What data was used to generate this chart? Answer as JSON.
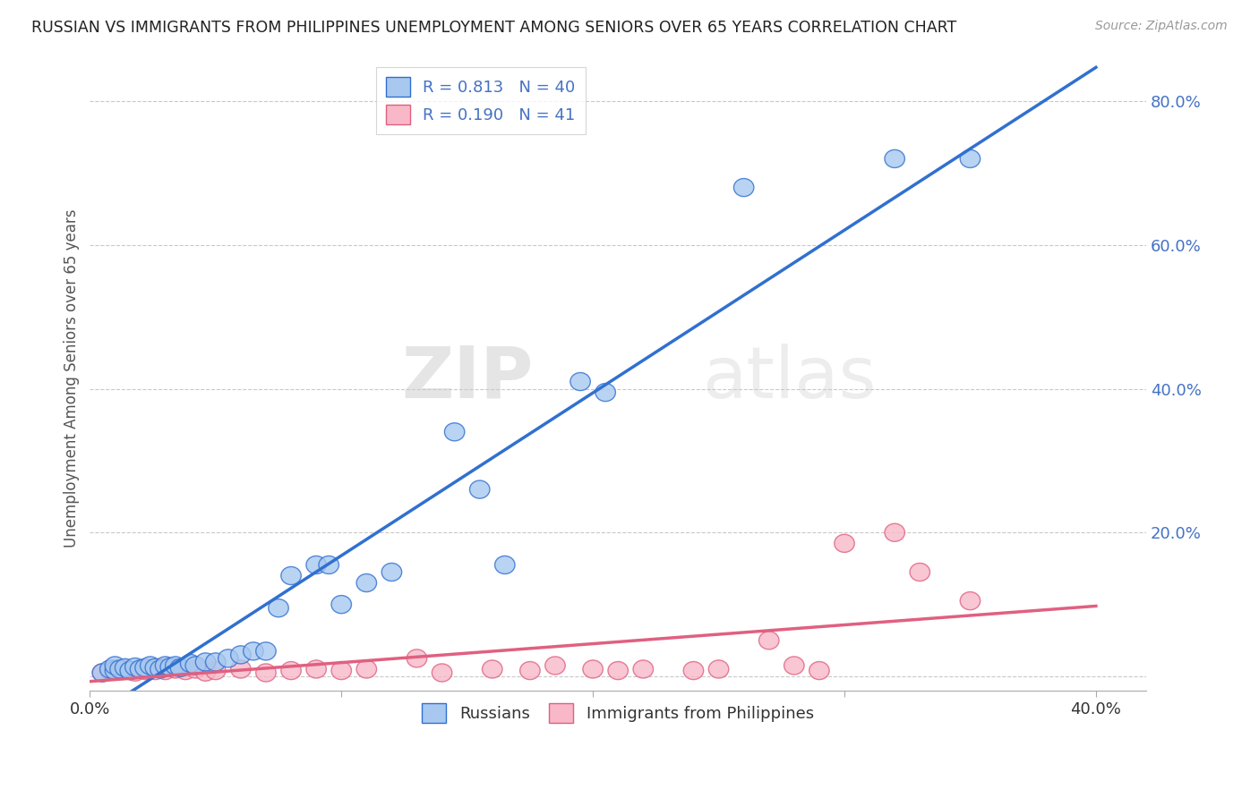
{
  "title": "RUSSIAN VS IMMIGRANTS FROM PHILIPPINES UNEMPLOYMENT AMONG SENIORS OVER 65 YEARS CORRELATION CHART",
  "source": "Source: ZipAtlas.com",
  "ylabel": "Unemployment Among Seniors over 65 years",
  "xlim": [
    0.0,
    0.42
  ],
  "ylim": [
    -0.02,
    0.85
  ],
  "xticks": [
    0.0,
    0.1,
    0.2,
    0.3,
    0.4
  ],
  "xtick_labels": [
    "0.0%",
    "",
    "",
    "",
    "40.0%"
  ],
  "ytick_labels_right": [
    "",
    "20.0%",
    "40.0%",
    "60.0%",
    "80.0%"
  ],
  "yticks_right": [
    0.0,
    0.2,
    0.4,
    0.6,
    0.8
  ],
  "russian_color": "#A8C8F0",
  "philippine_color": "#F8B8C8",
  "russian_line_color": "#3070D0",
  "philippine_line_color": "#E06080",
  "R_russian": "0.813",
  "N_russian": "40",
  "R_philippine": "0.190",
  "N_philippine": "41",
  "legend_label_1": "Russians",
  "legend_label_2": "Immigrants from Philippines",
  "watermark_zip": "ZIP",
  "watermark_atlas": "atlas",
  "russian_x": [
    0.005,
    0.008,
    0.01,
    0.01,
    0.012,
    0.014,
    0.016,
    0.018,
    0.02,
    0.022,
    0.024,
    0.026,
    0.028,
    0.03,
    0.032,
    0.034,
    0.036,
    0.04,
    0.042,
    0.046,
    0.05,
    0.055,
    0.06,
    0.065,
    0.07,
    0.075,
    0.08,
    0.09,
    0.095,
    0.1,
    0.11,
    0.12,
    0.145,
    0.155,
    0.165,
    0.195,
    0.205,
    0.26,
    0.32,
    0.35
  ],
  "russian_y": [
    0.005,
    0.01,
    0.008,
    0.015,
    0.01,
    0.012,
    0.008,
    0.013,
    0.01,
    0.012,
    0.015,
    0.012,
    0.01,
    0.015,
    0.013,
    0.015,
    0.012,
    0.018,
    0.015,
    0.02,
    0.02,
    0.025,
    0.03,
    0.035,
    0.035,
    0.095,
    0.14,
    0.155,
    0.155,
    0.1,
    0.13,
    0.145,
    0.34,
    0.26,
    0.155,
    0.41,
    0.395,
    0.68,
    0.72,
    0.72
  ],
  "philippine_x": [
    0.005,
    0.008,
    0.01,
    0.012,
    0.014,
    0.016,
    0.018,
    0.02,
    0.022,
    0.024,
    0.026,
    0.028,
    0.03,
    0.034,
    0.038,
    0.042,
    0.046,
    0.05,
    0.06,
    0.07,
    0.08,
    0.09,
    0.1,
    0.11,
    0.13,
    0.14,
    0.16,
    0.175,
    0.185,
    0.2,
    0.21,
    0.22,
    0.24,
    0.25,
    0.27,
    0.28,
    0.29,
    0.3,
    0.32,
    0.33,
    0.35
  ],
  "philippine_y": [
    0.005,
    0.008,
    0.01,
    0.008,
    0.01,
    0.008,
    0.006,
    0.01,
    0.008,
    0.01,
    0.008,
    0.012,
    0.008,
    0.01,
    0.008,
    0.01,
    0.006,
    0.008,
    0.01,
    0.005,
    0.008,
    0.01,
    0.008,
    0.01,
    0.025,
    0.005,
    0.01,
    0.008,
    0.015,
    0.01,
    0.008,
    0.01,
    0.008,
    0.01,
    0.05,
    0.015,
    0.008,
    0.185,
    0.2,
    0.145,
    0.105
  ]
}
